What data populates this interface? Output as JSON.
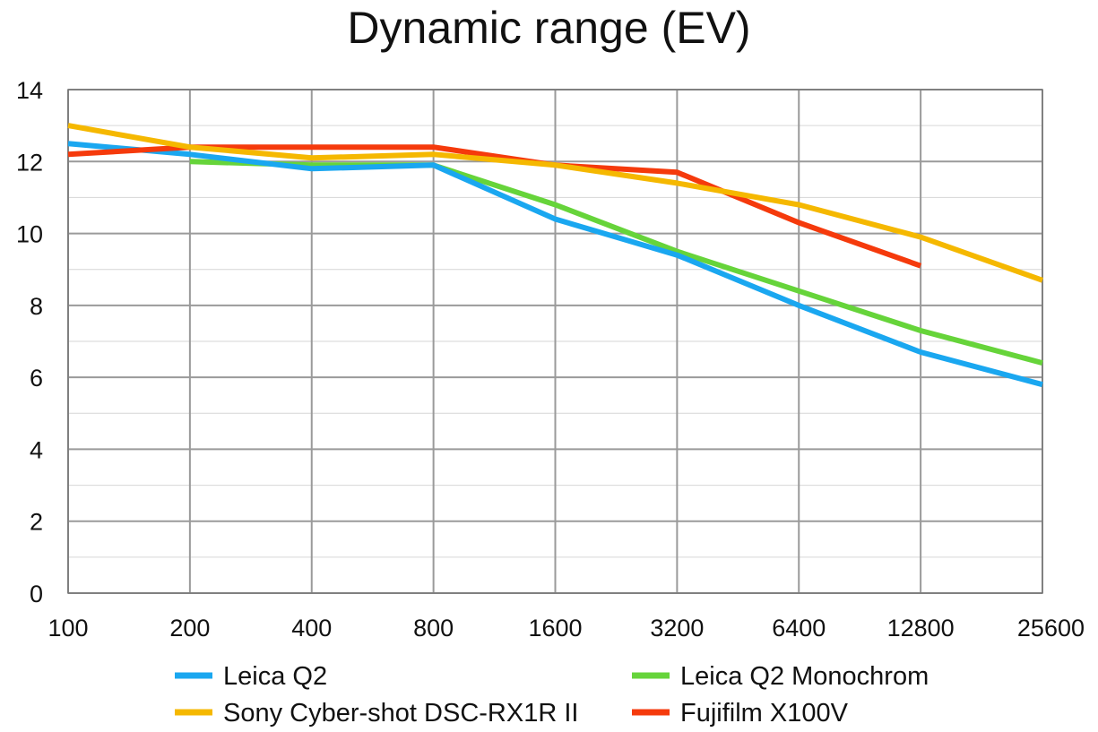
{
  "chart_data": {
    "type": "line",
    "title": "Dynamic range (EV)",
    "xlabel": "",
    "ylabel": "",
    "categories": [
      "100",
      "200",
      "400",
      "800",
      "1600",
      "3200",
      "6400",
      "12800",
      "25600"
    ],
    "ylim": [
      0,
      14
    ],
    "yticks": [
      0,
      2,
      4,
      6,
      8,
      10,
      12,
      14
    ],
    "grid": true,
    "legend_position": "bottom",
    "series": [
      {
        "name": "Leica Q2",
        "color": "#1aa7f0",
        "values": [
          12.5,
          12.2,
          11.8,
          11.9,
          10.4,
          9.4,
          8.0,
          6.7,
          5.8
        ]
      },
      {
        "name": "Leica Q2 Monochrom",
        "color": "#66d43a",
        "values": [
          null,
          12.0,
          11.9,
          11.9,
          10.8,
          9.5,
          8.4,
          7.3,
          6.4
        ]
      },
      {
        "name": "Sony Cyber-shot DSC-RX1R II",
        "color": "#f5b800",
        "values": [
          13.0,
          12.4,
          12.1,
          12.2,
          11.9,
          11.4,
          10.8,
          9.9,
          8.7
        ]
      },
      {
        "name": "Fujifilm X100V",
        "color": "#f53a0c",
        "values": [
          12.2,
          12.4,
          12.4,
          12.4,
          11.9,
          11.7,
          10.3,
          9.1,
          null
        ]
      }
    ]
  }
}
